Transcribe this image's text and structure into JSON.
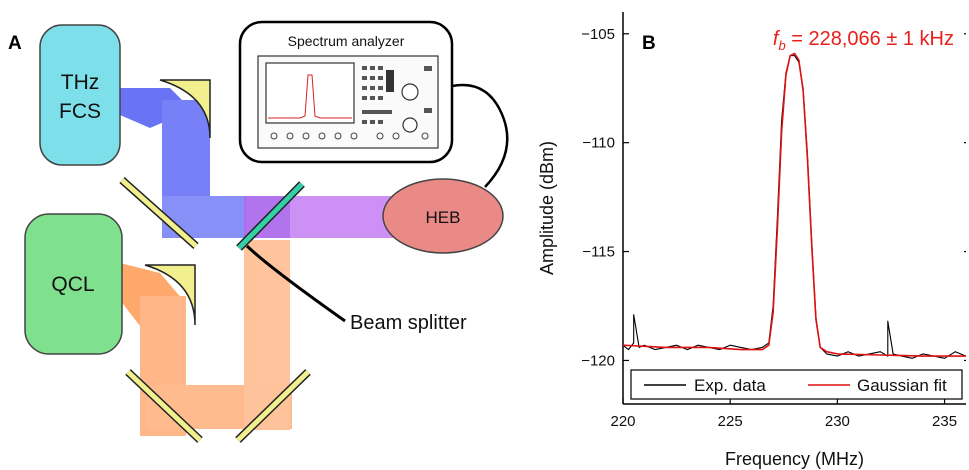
{
  "panel_a": {
    "letter": "A",
    "sources": {
      "thz_fcs_line1": "THz",
      "thz_fcs_line2": "FCS",
      "qcl": "QCL",
      "heb": "HEB"
    },
    "spectrum_analyzer_label": "Spectrum analyzer",
    "beam_splitter_label": "Beam splitter",
    "colors": {
      "thz_box": "#7ddfea",
      "qcl_box": "#7fe08e",
      "heb_ellipse": "#e98a87",
      "thz_beam": "#2f3ff0",
      "qcl_beam": "#ffa260",
      "merged_beam": "#c07cf2",
      "mirror": "#f2ef8e",
      "splitter": "#33d0a8"
    }
  },
  "panel_b": {
    "letter": "B",
    "annotation_prefix": "f",
    "annotation_sub": "b",
    "annotation_rest": " = 228,066 ± 1 kHz",
    "annotation_color": "#e8201c"
  },
  "chart_data": {
    "type": "line",
    "xlabel": "Frequency (MHz)",
    "ylabel": "Amplitude (dBm)",
    "xlim": [
      220,
      236
    ],
    "ylim": [
      -122,
      -104
    ],
    "xticks": [
      220,
      225,
      230,
      235
    ],
    "xtick_labels": [
      "220",
      "225",
      "230",
      "235"
    ],
    "yticks": [
      -105,
      -110,
      -115,
      -120
    ],
    "ytick_labels": [
      "−105",
      "−110",
      "−115",
      "−120"
    ],
    "grid": false,
    "legend_position": "bottom",
    "series": [
      {
        "name": "Exp. data",
        "color": "#000000",
        "x": [
          220.0,
          220.25,
          220.5,
          220.5,
          220.75,
          221.0,
          221.5,
          222.0,
          222.5,
          223.0,
          223.5,
          224.0,
          224.5,
          225.0,
          225.5,
          226.0,
          226.5,
          226.8,
          227.0,
          227.2,
          227.4,
          227.6,
          227.8,
          228.0,
          228.2,
          228.4,
          228.6,
          228.8,
          229.0,
          229.2,
          229.5,
          230.0,
          230.5,
          231.0,
          231.5,
          232.0,
          232.35,
          232.35,
          232.6,
          233.0,
          233.5,
          234.0,
          234.5,
          235.0,
          235.5,
          236.0
        ],
        "y": [
          -119.3,
          -119.5,
          -119.2,
          -117.9,
          -119.4,
          -119.3,
          -119.5,
          -119.4,
          -119.3,
          -119.5,
          -119.3,
          -119.4,
          -119.5,
          -119.3,
          -119.4,
          -119.5,
          -119.4,
          -119.2,
          -117.5,
          -113.5,
          -109.0,
          -106.8,
          -106.0,
          -106.0,
          -106.3,
          -107.5,
          -110.5,
          -114.5,
          -118.0,
          -119.4,
          -119.7,
          -119.8,
          -119.6,
          -119.8,
          -119.7,
          -119.6,
          -119.8,
          -118.2,
          -119.7,
          -119.8,
          -119.9,
          -119.7,
          -119.8,
          -119.9,
          -119.6,
          -119.8
        ]
      },
      {
        "name": "Gaussian fit",
        "color": "#dd1111",
        "x": [
          220.0,
          222.0,
          224.0,
          225.5,
          226.5,
          226.8,
          227.0,
          227.2,
          227.4,
          227.6,
          227.8,
          228.0,
          228.2,
          228.4,
          228.6,
          228.8,
          229.0,
          229.2,
          229.5,
          230.0,
          232.0,
          234.0,
          236.0
        ],
        "y": [
          -119.3,
          -119.4,
          -119.4,
          -119.5,
          -119.5,
          -119.3,
          -117.8,
          -114.0,
          -109.5,
          -106.9,
          -106.0,
          -105.9,
          -106.2,
          -107.6,
          -110.7,
          -114.7,
          -118.1,
          -119.4,
          -119.6,
          -119.7,
          -119.75,
          -119.8,
          -119.8
        ]
      }
    ]
  }
}
